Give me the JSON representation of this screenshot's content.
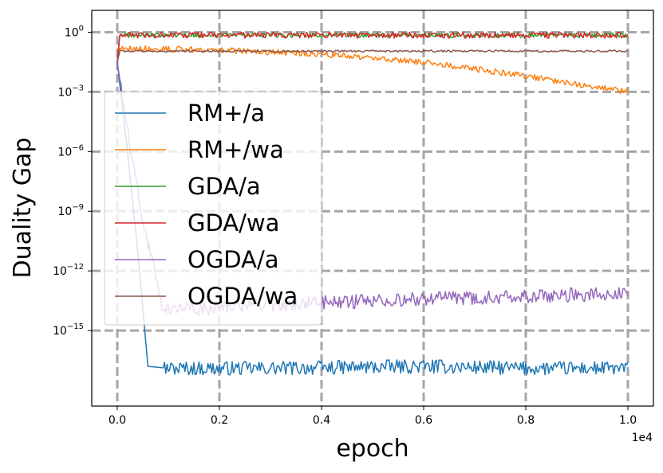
{
  "chart_data": {
    "type": "line",
    "title": "",
    "xlabel": "epoch",
    "ylabel": "Duality Gap",
    "x_offset_label": "1e4",
    "xlim": [
      -500,
      10500
    ],
    "ylim_log10": [
      -18.8,
      1.1
    ],
    "y_scale": "log",
    "grid": true,
    "legend_position": "center-left",
    "x_ticks": [
      {
        "value": 0,
        "label": "0.0"
      },
      {
        "value": 2000,
        "label": "0.2"
      },
      {
        "value": 4000,
        "label": "0.4"
      },
      {
        "value": 6000,
        "label": "0.6"
      },
      {
        "value": 8000,
        "label": "0.8"
      },
      {
        "value": 10000,
        "label": "1.0"
      }
    ],
    "y_ticks": [
      {
        "exp": 0,
        "base": "10",
        "sup": "0"
      },
      {
        "exp": -3,
        "base": "10",
        "sup": "−3"
      },
      {
        "exp": -6,
        "base": "10",
        "sup": "−6"
      },
      {
        "exp": -9,
        "base": "10",
        "sup": "−9"
      },
      {
        "exp": -12,
        "base": "10",
        "sup": "−12"
      },
      {
        "exp": -15,
        "base": "10",
        "sup": "−15"
      }
    ],
    "series": [
      {
        "name": "RM+/a",
        "color": "#1f77b4",
        "points_log10": [
          [
            0,
            -1.5
          ],
          [
            200,
            -6.0
          ],
          [
            400,
            -11.0
          ],
          [
            600,
            -16.8
          ],
          [
            1000,
            -16.9
          ],
          [
            3000,
            -16.9
          ],
          [
            6000,
            -16.8
          ],
          [
            8000,
            -16.9
          ],
          [
            10000,
            -16.9
          ]
        ],
        "noise_amplitude": 0.35
      },
      {
        "name": "RM+/wa",
        "color": "#ff7f0e",
        "points_log10": [
          [
            0,
            -1.5
          ],
          [
            50,
            -0.8
          ],
          [
            2000,
            -0.9
          ],
          [
            4000,
            -1.1
          ],
          [
            6000,
            -1.5
          ],
          [
            8000,
            -2.2
          ],
          [
            10000,
            -3.0
          ]
        ],
        "noise_amplitude": 0.15
      },
      {
        "name": "GDA/a",
        "color": "#2ca02c",
        "points_log10": [
          [
            0,
            -1.5
          ],
          [
            50,
            -0.15
          ],
          [
            10000,
            -0.15
          ]
        ],
        "noise_amplitude": 0.12
      },
      {
        "name": "GDA/wa",
        "color": "#d62728",
        "points_log10": [
          [
            0,
            -1.5
          ],
          [
            50,
            -0.15
          ],
          [
            10000,
            -0.15
          ]
        ],
        "noise_amplitude": 0.15
      },
      {
        "name": "OGDA/a",
        "color": "#9467bd",
        "points_log10": [
          [
            0,
            -1.5
          ],
          [
            200,
            -5.0
          ],
          [
            500,
            -9.5
          ],
          [
            900,
            -14.0
          ],
          [
            3000,
            -13.7
          ],
          [
            6000,
            -13.4
          ],
          [
            8000,
            -13.3
          ],
          [
            10000,
            -13.1
          ]
        ],
        "noise_amplitude": 0.35
      },
      {
        "name": "OGDA/wa",
        "color": "#8c564b",
        "points_log10": [
          [
            0,
            -1.5
          ],
          [
            50,
            -0.95
          ],
          [
            10000,
            -0.95
          ]
        ],
        "noise_amplitude": 0.05
      }
    ]
  }
}
